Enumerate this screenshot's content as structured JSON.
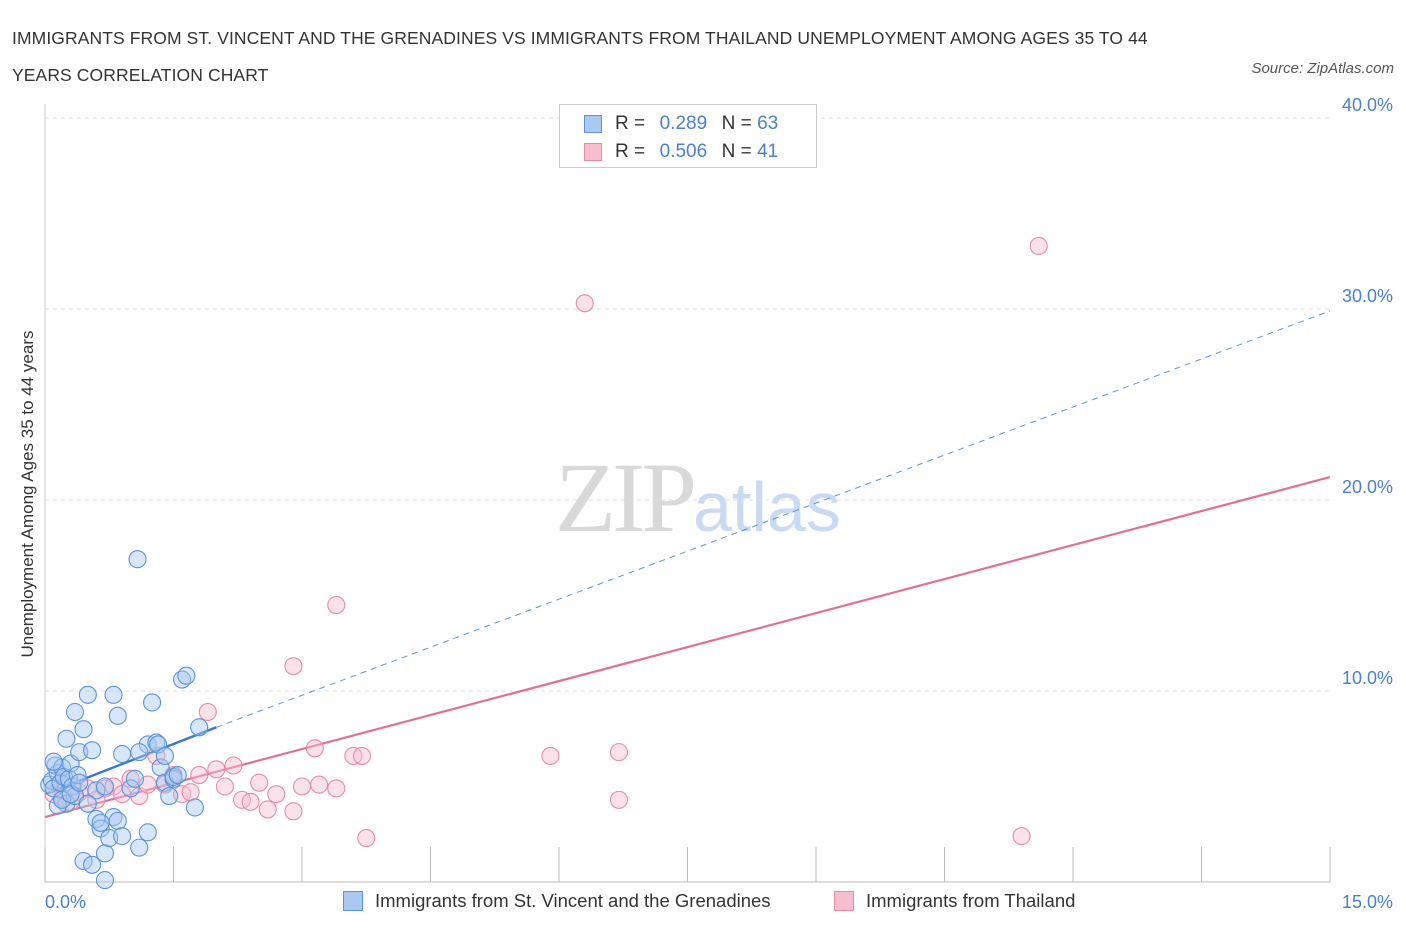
{
  "title": "IMMIGRANTS FROM ST. VINCENT AND THE GRENADINES VS IMMIGRANTS FROM THAILAND UNEMPLOYMENT AMONG AGES 35 TO 44 YEARS CORRELATION CHART",
  "source": "Source: ZipAtlas.com",
  "watermark": {
    "zip": "ZIP",
    "atlas": "atlas"
  },
  "legend": {
    "r_label": "R =",
    "n_label": "N =",
    "series1": {
      "r": "0.289",
      "n": "63"
    },
    "series2": {
      "r": "0.506",
      "n": "41"
    }
  },
  "colors": {
    "blue_fill": "#a9c8f2",
    "blue_stroke": "#5b93d8",
    "blue_line": "#3a77cf",
    "pink_fill": "#f6bfd0",
    "pink_stroke": "#e68aa8",
    "pink_line": "#e0709a",
    "tick_text": "#4a7fd0",
    "grid": "#dddddd"
  },
  "chart_data": {
    "type": "scatter",
    "title": "IMMIGRANTS FROM ST. VINCENT AND THE GRENADINES VS IMMIGRANTS FROM THAILAND UNEMPLOYMENT AMONG AGES 35 TO 44 YEARS CORRELATION CHART",
    "xlabel": "",
    "ylabel": "Unemployment Among Ages 35 to 44 years",
    "xlim": [
      0,
      15
    ],
    "ylim": [
      0,
      40
    ],
    "x_tick_labels": [
      "0.0%",
      "15.0%"
    ],
    "y_ticks": [
      10,
      20,
      30,
      40
    ],
    "y_tick_labels": [
      "10.0%",
      "20.0%",
      "30.0%",
      "40.0%"
    ],
    "grid": true,
    "legend_position": "top-center",
    "series": [
      {
        "name": "Immigrants from St. Vincent and the Grenadines",
        "r": 0.289,
        "n": 63,
        "trend": {
          "x0": 0.0,
          "y0": 4.6,
          "x1": 2.0,
          "y1": 8.1,
          "dashed_to_x": 15.0,
          "dashed_to_y": 29.9
        },
        "points": [
          [
            0.05,
            5.1
          ],
          [
            0.08,
            5.3
          ],
          [
            0.1,
            4.9
          ],
          [
            0.12,
            6.1
          ],
          [
            0.15,
            5.7
          ],
          [
            0.18,
            5.2
          ],
          [
            0.2,
            6.0
          ],
          [
            0.22,
            5.5
          ],
          [
            0.25,
            4.1
          ],
          [
            0.28,
            5.4
          ],
          [
            0.3,
            6.2
          ],
          [
            0.32,
            5.0
          ],
          [
            0.35,
            4.5
          ],
          [
            0.38,
            5.6
          ],
          [
            0.4,
            6.8
          ],
          [
            0.45,
            8.0
          ],
          [
            0.5,
            9.8
          ],
          [
            0.55,
            6.9
          ],
          [
            0.6,
            3.3
          ],
          [
            0.65,
            2.8
          ],
          [
            0.7,
            1.5
          ],
          [
            0.75,
            2.3
          ],
          [
            0.8,
            3.4
          ],
          [
            0.85,
            3.2
          ],
          [
            0.9,
            2.4
          ],
          [
            0.6,
            4.8
          ],
          [
            0.7,
            5.0
          ],
          [
            0.8,
            9.8
          ],
          [
            0.85,
            8.7
          ],
          [
            0.9,
            6.7
          ],
          [
            1.0,
            4.9
          ],
          [
            1.1,
            1.8
          ],
          [
            1.2,
            7.2
          ],
          [
            1.3,
            7.3
          ],
          [
            1.35,
            6.0
          ],
          [
            1.4,
            5.2
          ],
          [
            1.45,
            4.5
          ],
          [
            1.5,
            5.4
          ],
          [
            1.1,
            6.8
          ],
          [
            1.05,
            5.4
          ],
          [
            1.08,
            16.9
          ],
          [
            1.2,
            2.6
          ],
          [
            1.25,
            9.4
          ],
          [
            1.32,
            7.2
          ],
          [
            1.4,
            6.6
          ],
          [
            1.5,
            5.5
          ],
          [
            1.55,
            5.6
          ],
          [
            1.6,
            10.6
          ],
          [
            1.65,
            10.8
          ],
          [
            1.75,
            3.9
          ],
          [
            1.8,
            8.1
          ],
          [
            0.15,
            4.0
          ],
          [
            0.25,
            7.5
          ],
          [
            0.35,
            8.9
          ],
          [
            0.45,
            1.1
          ],
          [
            0.55,
            0.9
          ],
          [
            0.65,
            3.1
          ],
          [
            0.2,
            4.3
          ],
          [
            0.3,
            4.6
          ],
          [
            0.4,
            5.2
          ],
          [
            0.5,
            4.1
          ],
          [
            0.7,
            0.1
          ],
          [
            0.1,
            6.3
          ]
        ]
      },
      {
        "name": "Immigrants from Thailand",
        "r": 0.506,
        "n": 41,
        "trend": {
          "x0": 0.0,
          "y0": 3.4,
          "x1": 15.0,
          "y1": 21.2
        },
        "points": [
          [
            0.1,
            4.6
          ],
          [
            0.2,
            4.4
          ],
          [
            0.3,
            4.2
          ],
          [
            0.4,
            4.7
          ],
          [
            0.5,
            4.9
          ],
          [
            0.6,
            4.3
          ],
          [
            0.7,
            4.9
          ],
          [
            0.8,
            5.0
          ],
          [
            0.9,
            4.6
          ],
          [
            1.0,
            5.4
          ],
          [
            1.1,
            4.5
          ],
          [
            1.2,
            5.1
          ],
          [
            1.3,
            6.6
          ],
          [
            1.4,
            5.1
          ],
          [
            1.5,
            5.6
          ],
          [
            1.6,
            4.6
          ],
          [
            1.7,
            4.7
          ],
          [
            1.8,
            5.6
          ],
          [
            1.9,
            8.9
          ],
          [
            2.0,
            5.9
          ],
          [
            2.1,
            5.0
          ],
          [
            2.2,
            6.1
          ],
          [
            2.3,
            4.3
          ],
          [
            2.4,
            4.2
          ],
          [
            2.5,
            5.2
          ],
          [
            2.6,
            3.8
          ],
          [
            2.7,
            4.6
          ],
          [
            2.9,
            3.7
          ],
          [
            3.0,
            5.0
          ],
          [
            3.2,
            5.1
          ],
          [
            3.4,
            4.9
          ],
          [
            3.6,
            6.6
          ],
          [
            3.7,
            6.6
          ],
          [
            3.4,
            14.5
          ],
          [
            2.9,
            11.3
          ],
          [
            3.75,
            2.3
          ],
          [
            5.9,
            6.6
          ],
          [
            6.3,
            30.3
          ],
          [
            6.7,
            4.3
          ],
          [
            6.7,
            6.8
          ],
          [
            11.4,
            2.4
          ]
        ],
        "extra_points": [
          [
            11.6,
            33.3
          ],
          [
            3.15,
            7.0
          ]
        ]
      }
    ]
  },
  "bottom_legend": {
    "item1": "Immigrants from St. Vincent and the Grenadines",
    "item2": "Immigrants from Thailand"
  }
}
